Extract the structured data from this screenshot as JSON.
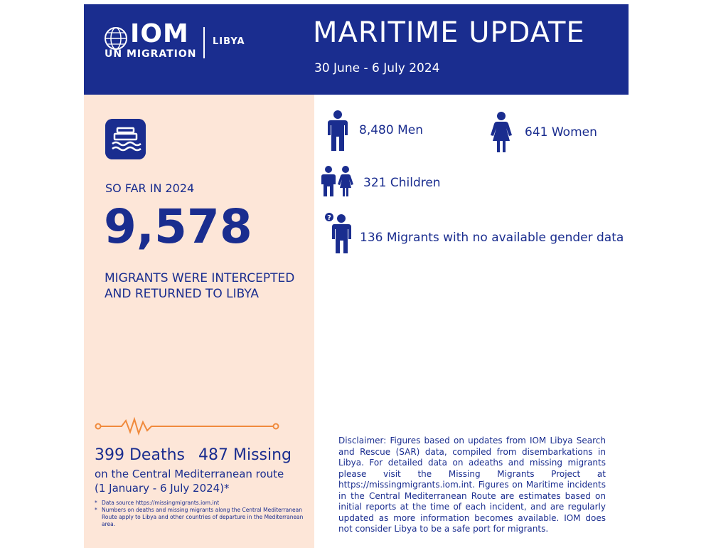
{
  "header": {
    "org": "IOM",
    "org_sub": "UN MIGRATION",
    "country": "LIBYA",
    "title": "MARITIME UPDATE",
    "period": "30 June - 6 July 2024"
  },
  "summary": {
    "label": "SO FAR IN 2024",
    "total": "9,578",
    "description": "MIGRANTS WERE INTERCEPTED AND RETURNED TO LIBYA"
  },
  "breakdown": {
    "men": "8,480 Men",
    "women": "641 Women",
    "children": "321 Children",
    "unknown": "136 Migrants with no available gender data"
  },
  "casualties": {
    "deaths": "399 Deaths",
    "missing": "487 Missing",
    "route_line1": "on the Central Mediterranean route",
    "route_line2": "(1 January - 6 July 2024)*",
    "notes": [
      "Data source https://missingmigrants.iom.int",
      "Numbers on deaths and missing migrants along the Central Mediterranean Route apply to Libya and other countries of departure in the Mediterranean area."
    ]
  },
  "disclaimer": "Disclaimer: Figures based on updates from IOM Libya Search and Rescue (SAR) data, compiled from disembarkations in Libya. For detailed data on adeaths and missing migrants please visit the Missing Migrants Project at https://missingmigrants.iom.int. Figures on Maritime incidents in the Central Mediterranean Route are estimates based on initial reports at the time of each incident, and are regularly updated as more information becomes available. IOM does not consider Libya to be a safe port for migrants.",
  "colors": {
    "brand": "#1a2d8f",
    "panel": "#fde6d8",
    "accent": "#f08a3c"
  },
  "icons": [
    "globe-icon",
    "boat-icon",
    "man-icon",
    "woman-icon",
    "children-icon",
    "unknown-person-icon",
    "pulse-line-icon"
  ]
}
